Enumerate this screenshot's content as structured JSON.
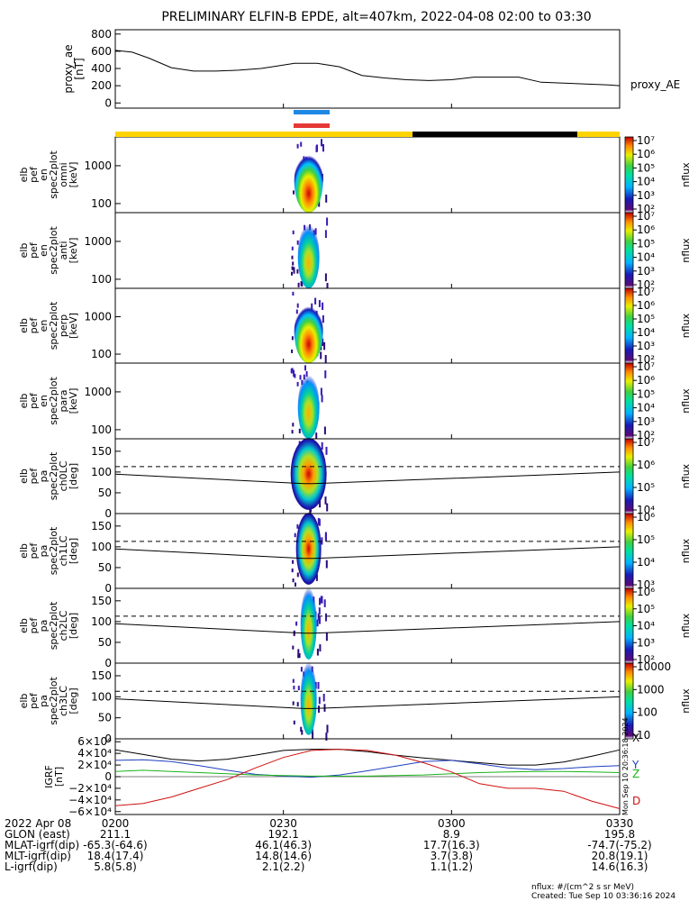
{
  "title": "PRELIMINARY ELFIN-B EPDE, alt=407km, 2022-04-08 02:00 to 03:30",
  "colors": {
    "yellow_bar": "#ffd400",
    "black_bar": "#000000",
    "blue_bar": "#1e88e5",
    "red_bar": "#e53935",
    "bx": "#000000",
    "by": "#1f3fbf",
    "bz": "#19b419",
    "bd": "#d01010"
  },
  "chart_data": [
    {
      "type": "line",
      "ylabel_lines": [
        "proxy_ae",
        "[nT]"
      ],
      "right_label": "proxy_AE",
      "yticks": [
        "800",
        "600",
        "400",
        "200",
        "0"
      ],
      "ylim": [
        -60,
        850
      ],
      "x_minutes": [
        0,
        3,
        6,
        10,
        14,
        18,
        22,
        26,
        28,
        32,
        36,
        40,
        44,
        48,
        52,
        56,
        60,
        64,
        68,
        72,
        76,
        80,
        84,
        88,
        90
      ],
      "values": [
        610,
        590,
        520,
        410,
        370,
        370,
        380,
        400,
        420,
        460,
        460,
        420,
        320,
        290,
        270,
        260,
        270,
        300,
        300,
        300,
        240,
        230,
        220,
        210,
        200
      ]
    },
    {
      "type": "heatmap",
      "ylabel_lines": [
        "elb",
        "pef",
        "en",
        "spec2plot",
        "omni",
        "[keV]"
      ],
      "yticks": [
        "1000",
        "100"
      ],
      "colorbar_label": "nflux",
      "colorbar_ticks": [
        "10⁷",
        "10⁶",
        "10⁵",
        "10⁴",
        "10³",
        "10²"
      ]
    },
    {
      "type": "heatmap",
      "ylabel_lines": [
        "elb",
        "pef",
        "en",
        "spec2plot",
        "anti",
        "[keV]"
      ],
      "yticks": [
        "1000",
        "100"
      ],
      "colorbar_label": "nflux",
      "colorbar_ticks": [
        "10⁷",
        "10⁶",
        "10⁵",
        "10⁴",
        "10³",
        "10²"
      ]
    },
    {
      "type": "heatmap",
      "ylabel_lines": [
        "elb",
        "pef",
        "en",
        "spec2plot",
        "perp",
        "[keV]"
      ],
      "yticks": [
        "1000",
        "100"
      ],
      "colorbar_label": "nflux",
      "colorbar_ticks": [
        "10⁷",
        "10⁶",
        "10⁵",
        "10⁴",
        "10³",
        "10²"
      ]
    },
    {
      "type": "heatmap",
      "ylabel_lines": [
        "elb",
        "pef",
        "en",
        "spec2plot",
        "para",
        "[keV]"
      ],
      "yticks": [
        "1000",
        "100"
      ],
      "colorbar_label": "nflux",
      "colorbar_ticks": [
        "10⁷",
        "10⁶",
        "10⁵",
        "10⁴",
        "10³",
        "10²"
      ]
    },
    {
      "type": "heatmap",
      "ylabel_lines": [
        "elb",
        "pef",
        "pa",
        "spec2plot",
        "ch0LC",
        "[deg]"
      ],
      "yticks": [
        "150",
        "100",
        "50",
        "0"
      ],
      "colorbar_label": "nflux",
      "colorbar_ticks": [
        "10⁷",
        "10⁶",
        "10⁵",
        "10⁴"
      ]
    },
    {
      "type": "heatmap",
      "ylabel_lines": [
        "elb",
        "pef",
        "pa",
        "spec2plot",
        "ch1LC",
        "[deg]"
      ],
      "yticks": [
        "150",
        "100",
        "50",
        "0"
      ],
      "colorbar_label": "nflux",
      "colorbar_ticks": [
        "10⁶",
        "10⁵",
        "10⁴",
        "10³"
      ]
    },
    {
      "type": "heatmap",
      "ylabel_lines": [
        "elb",
        "pef",
        "pa",
        "spec2plot",
        "ch2LC",
        "[deg]"
      ],
      "yticks": [
        "150",
        "100",
        "50",
        "0"
      ],
      "colorbar_label": "nflux",
      "colorbar_ticks": [
        "10⁶",
        "10⁵",
        "10⁴",
        "10³",
        "10²"
      ]
    },
    {
      "type": "heatmap",
      "ylabel_lines": [
        "elb",
        "pef",
        "pa",
        "spec2plot",
        "ch3LC",
        "[deg]"
      ],
      "yticks": [
        "150",
        "100",
        "50",
        "0"
      ],
      "colorbar_label": "nflux",
      "colorbar_ticks": [
        "10000",
        "1000",
        "100",
        "10"
      ]
    },
    {
      "type": "line",
      "ylabel_lines": [
        "IGRF",
        "[nT]"
      ],
      "yticks": [
        "6×10⁴",
        "4×10⁴",
        "2×10⁴",
        "0",
        "−2×10⁴",
        "−4×10⁴",
        "−6×10⁴"
      ],
      "ylim": [
        -65000,
        65000
      ],
      "right_labels": [
        "X",
        "Y",
        "Z",
        "D"
      ],
      "x_minutes": [
        0,
        5,
        10,
        15,
        20,
        25,
        30,
        35,
        40,
        45,
        50,
        55,
        60,
        65,
        70,
        75,
        80,
        85,
        90
      ],
      "series": [
        {
          "values": [
            46000,
            38000,
            30000,
            27000,
            30000,
            37000,
            45000,
            47000,
            47000,
            43000,
            37000,
            32000,
            28000,
            24000,
            20000,
            20000,
            25000,
            35000,
            46000
          ]
        },
        {
          "values": [
            28000,
            29000,
            26000,
            19000,
            11000,
            4000,
            1000,
            -1000,
            3000,
            10000,
            18000,
            26000,
            28000,
            22000,
            15000,
            12000,
            14000,
            17000,
            19000
          ]
        },
        {
          "values": [
            9000,
            11000,
            9000,
            7000,
            5000,
            3000,
            2000,
            1000,
            1000,
            1000,
            2000,
            3000,
            5000,
            7000,
            8000,
            9000,
            9000,
            8000,
            7000
          ]
        },
        {
          "values": [
            -50000,
            -46000,
            -35000,
            -20000,
            -5000,
            15000,
            33000,
            45000,
            47000,
            45000,
            37000,
            24000,
            8000,
            -12000,
            -20000,
            -20000,
            -25000,
            -42000,
            -55000
          ]
        }
      ]
    }
  ],
  "side_text": "Mon Sep 10 20:36:18 2024",
  "xaxis": {
    "tick_labels": [
      "0200",
      "0230",
      "0300",
      "0330"
    ],
    "tick_minutes": [
      0,
      30,
      60,
      90
    ]
  },
  "footer": {
    "rows": [
      {
        "label": "2022 Apr 08",
        "values": [
          "0200",
          "0230",
          "0300",
          "0330"
        ]
      },
      {
        "label": "GLON (east)",
        "values": [
          "211.1",
          "192.1",
          "8.9",
          "195.8"
        ]
      },
      {
        "label": "MLAT-igrf(dip)",
        "values": [
          "-65.3(-64.6)",
          "46.1(46.3)",
          "17.7(16.3)",
          "-74.7(-75.2)"
        ]
      },
      {
        "label": "MLT-igrf(dip)",
        "values": [
          "18.4(17.4)",
          "14.8(14.6)",
          "3.7(3.8)",
          "20.8(19.1)"
        ]
      },
      {
        "label": "L-igrf(dip)",
        "values": [
          "5.8(5.8)",
          "2.1(2.2)",
          "1.1(1.2)",
          "14.6(16.3)"
        ]
      }
    ],
    "note": "nflux: #/(cm^2 s sr MeV)",
    "created": "Created: Tue Sep 10 03:36:16 2024"
  }
}
